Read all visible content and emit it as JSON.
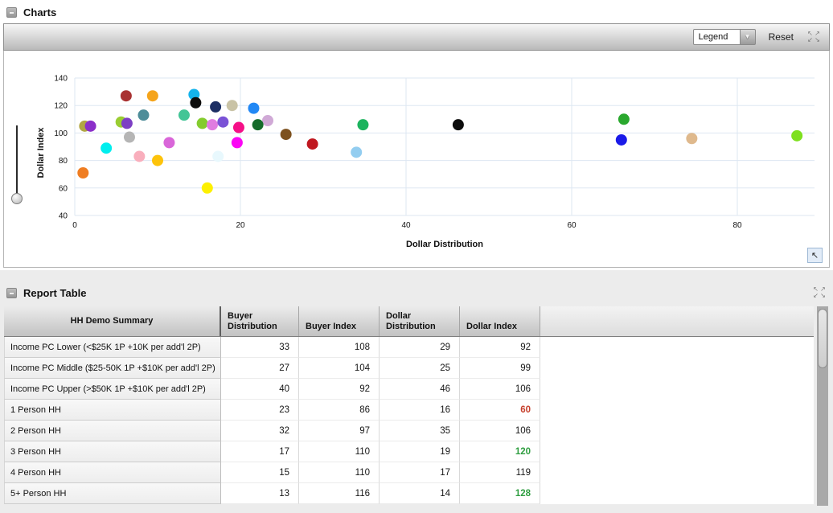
{
  "charts_panel": {
    "title": "Charts",
    "toolbar": {
      "legend_value": "Legend",
      "reset_label": "Reset"
    },
    "corner_button_glyph": "arrow-up-left",
    "chart_data": {
      "type": "scatter",
      "title": "",
      "xlabel": "Dollar Distribution",
      "ylabel": "Dollar Index",
      "xlim": [
        0,
        89.5
      ],
      "ylim": [
        40,
        140
      ],
      "x_ticks": [
        0,
        20,
        40,
        60,
        80
      ],
      "y_ticks": [
        40,
        60,
        80,
        100,
        120,
        140
      ],
      "grid": true,
      "legend_position": "none",
      "points": [
        {
          "x": 1.2,
          "y": 105,
          "color": "#b1a642"
        },
        {
          "x": 1.9,
          "y": 105,
          "color": "#8b2fc9"
        },
        {
          "x": 1.0,
          "y": 71,
          "color": "#ef7d22"
        },
        {
          "x": 3.8,
          "y": 89,
          "color": "#00eeee"
        },
        {
          "x": 5.6,
          "y": 108,
          "color": "#9acd32"
        },
        {
          "x": 6.3,
          "y": 107,
          "color": "#7d3fc4"
        },
        {
          "x": 6.2,
          "y": 127,
          "color": "#a93232"
        },
        {
          "x": 6.6,
          "y": 97,
          "color": "#b5b5b5"
        },
        {
          "x": 7.8,
          "y": 83,
          "color": "#f9aebc"
        },
        {
          "x": 8.3,
          "y": 113,
          "color": "#4e8d99"
        },
        {
          "x": 9.4,
          "y": 127,
          "color": "#f5a41b"
        },
        {
          "x": 10.0,
          "y": 80,
          "color": "#fdc30b"
        },
        {
          "x": 11.4,
          "y": 93,
          "color": "#d966d9"
        },
        {
          "x": 13.2,
          "y": 113,
          "color": "#43c596"
        },
        {
          "x": 14.4,
          "y": 128,
          "color": "#14b3ec"
        },
        {
          "x": 14.6,
          "y": 122,
          "color": "#0d0d0d"
        },
        {
          "x": 15.4,
          "y": 107,
          "color": "#84cc2e"
        },
        {
          "x": 16.0,
          "y": 60,
          "color": "#fdf000"
        },
        {
          "x": 16.6,
          "y": 106,
          "color": "#e07ce0"
        },
        {
          "x": 17.0,
          "y": 119,
          "color": "#1c2e63"
        },
        {
          "x": 17.3,
          "y": 83,
          "color": "#e8f8fd"
        },
        {
          "x": 17.9,
          "y": 108,
          "color": "#7a52d6"
        },
        {
          "x": 19.0,
          "y": 120,
          "color": "#c9c3a6"
        },
        {
          "x": 19.8,
          "y": 104,
          "color": "#f50f87"
        },
        {
          "x": 19.6,
          "y": 93,
          "color": "#fb06f5"
        },
        {
          "x": 21.6,
          "y": 118,
          "color": "#2288f5"
        },
        {
          "x": 23.3,
          "y": 109,
          "color": "#d0a9d6"
        },
        {
          "x": 22.1,
          "y": 106,
          "color": "#156b2b"
        },
        {
          "x": 25.5,
          "y": 99,
          "color": "#7d511e"
        },
        {
          "x": 28.7,
          "y": 92,
          "color": "#c01820"
        },
        {
          "x": 34.0,
          "y": 86,
          "color": "#93cdf0"
        },
        {
          "x": 34.8,
          "y": 106,
          "color": "#1cb35e"
        },
        {
          "x": 46.3,
          "y": 106,
          "color": "#0d0d0d"
        },
        {
          "x": 66.3,
          "y": 110,
          "color": "#2aa82e"
        },
        {
          "x": 66.0,
          "y": 95,
          "color": "#1a1ae8"
        },
        {
          "x": 74.5,
          "y": 96,
          "color": "#dfb98d"
        },
        {
          "x": 87.2,
          "y": 98,
          "color": "#7ee01e"
        }
      ]
    }
  },
  "report_panel": {
    "title": "Report Table",
    "table": {
      "columns": [
        "HH Demo Summary",
        "Buyer Distribution",
        "Buyer Index",
        "Dollar Distribution",
        "Dollar Index"
      ],
      "flag_colors": {
        "low": "#c7402d",
        "high": "#2f9e41"
      },
      "rows": [
        {
          "label": "Income PC Lower (<$25K 1P +10K per add'l 2P)",
          "values": [
            33,
            108,
            29,
            92
          ],
          "dollar_index_flag": null
        },
        {
          "label": "Income PC Middle ($25-50K 1P +$10K per add'l 2P)",
          "values": [
            27,
            104,
            25,
            99
          ],
          "dollar_index_flag": null
        },
        {
          "label": "Income PC Upper (>$50K 1P +$10K per add'l 2P)",
          "values": [
            40,
            92,
            46,
            106
          ],
          "dollar_index_flag": null
        },
        {
          "label": "1 Person HH",
          "values": [
            23,
            86,
            16,
            60
          ],
          "dollar_index_flag": "low"
        },
        {
          "label": "2 Person HH",
          "values": [
            32,
            97,
            35,
            106
          ],
          "dollar_index_flag": null
        },
        {
          "label": "3 Person HH",
          "values": [
            17,
            110,
            19,
            120
          ],
          "dollar_index_flag": "high"
        },
        {
          "label": "4 Person HH",
          "values": [
            15,
            110,
            17,
            119
          ],
          "dollar_index_flag": null
        },
        {
          "label": "5+ Person HH",
          "values": [
            13,
            116,
            14,
            128
          ],
          "dollar_index_flag": "high"
        }
      ]
    }
  },
  "icons": {
    "expand_arrows": [
      "↖",
      "↗",
      "↙",
      "↘"
    ],
    "combo_arrow": "▼",
    "corner_arrow": "↖"
  }
}
